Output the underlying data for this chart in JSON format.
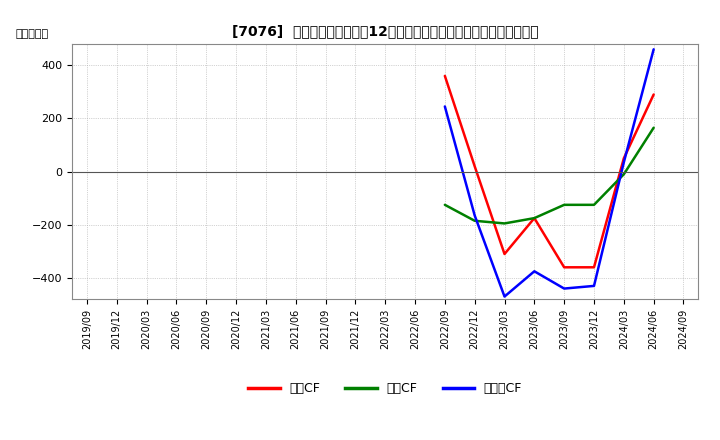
{
  "title": "[7076]  キャッシュフローの12か月移動合計の対前年同期増減額の推移",
  "ylabel": "（百万円）",
  "ylim": [
    -480,
    480
  ],
  "yticks": [
    -400,
    -200,
    0,
    200,
    400
  ],
  "background_color": "#ffffff",
  "plot_background_color": "#ffffff",
  "grid_color": "#aaaaaa",
  "series": {
    "営業CF": {
      "color": "#ff0000",
      "data": [
        [
          "2022/09",
          360
        ],
        [
          "2022/12",
          20
        ],
        [
          "2023/03",
          -310
        ],
        [
          "2023/06",
          -175
        ],
        [
          "2023/09",
          -360
        ],
        [
          "2023/12",
          -360
        ],
        [
          "2024/03",
          50
        ],
        [
          "2024/06",
          290
        ]
      ]
    },
    "投資CF": {
      "color": "#008000",
      "data": [
        [
          "2022/09",
          -125
        ],
        [
          "2022/12",
          -185
        ],
        [
          "2023/03",
          -195
        ],
        [
          "2023/06",
          -175
        ],
        [
          "2023/09",
          -125
        ],
        [
          "2023/12",
          -125
        ],
        [
          "2024/03",
          -10
        ],
        [
          "2024/06",
          165
        ]
      ]
    },
    "フリーCF": {
      "color": "#0000ff",
      "data": [
        [
          "2022/09",
          245
        ],
        [
          "2022/12",
          -165
        ],
        [
          "2023/03",
          -470
        ],
        [
          "2023/06",
          -375
        ],
        [
          "2023/09",
          -440
        ],
        [
          "2023/12",
          -430
        ],
        [
          "2024/03",
          35
        ],
        [
          "2024/06",
          460
        ]
      ]
    }
  },
  "legend_labels": [
    "営業CF",
    "投資CF",
    "フリーCF"
  ],
  "legend_colors": [
    "#ff0000",
    "#008000",
    "#0000ff"
  ],
  "xtick_labels": [
    "2019/09",
    "2019/12",
    "2020/03",
    "2020/06",
    "2020/09",
    "2020/12",
    "2021/03",
    "2021/06",
    "2021/09",
    "2021/12",
    "2022/03",
    "2022/06",
    "2022/09",
    "2022/12",
    "2023/03",
    "2023/06",
    "2023/09",
    "2023/12",
    "2024/03",
    "2024/06",
    "2024/09"
  ],
  "font_path": "auto"
}
